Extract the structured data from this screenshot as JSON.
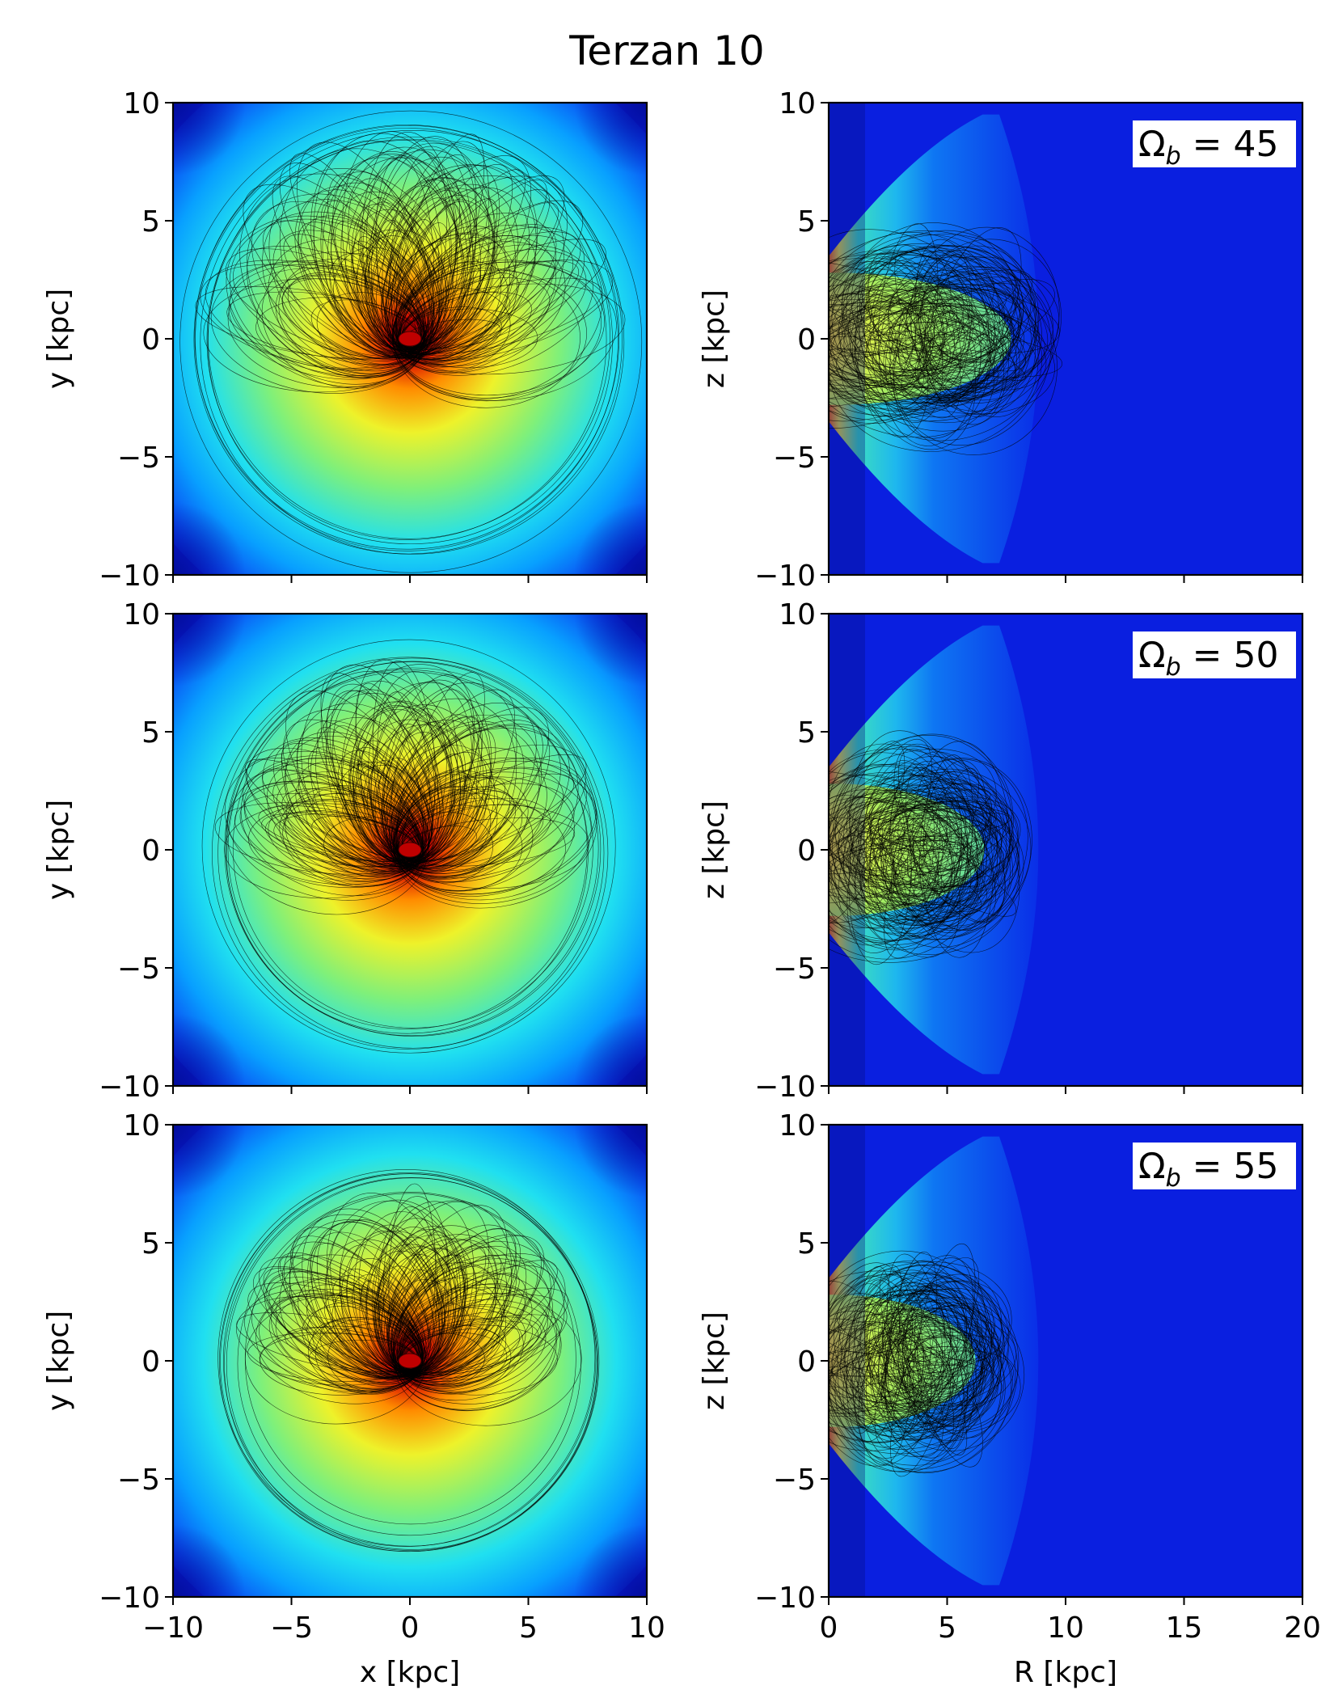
{
  "figure": {
    "title": "Terzan 10"
  },
  "chart_data": [
    {
      "type": "heatmap",
      "panel": "row1-left",
      "xlabel": "",
      "ylabel": "y [kpc]",
      "xlim": [
        -10,
        10
      ],
      "ylim": [
        -10,
        10
      ],
      "xticks": [
        -10,
        -5,
        0,
        5,
        10
      ],
      "yticks": [
        -10,
        -5,
        0,
        5,
        10
      ],
      "xticklabels_shown": false,
      "annotation": "",
      "density_peak": [
        0,
        0
      ],
      "orbit_extent_kpc": 9.8,
      "colormap": "jet"
    },
    {
      "type": "heatmap",
      "panel": "row1-right",
      "xlabel": "",
      "ylabel": "z [kpc]",
      "xlim": [
        0,
        20
      ],
      "ylim": [
        -10,
        10
      ],
      "xticks": [
        0,
        5,
        10,
        15,
        20
      ],
      "yticks": [
        -10,
        -5,
        0,
        5,
        10
      ],
      "xticklabels_shown": false,
      "annotation": "Ω_b = 45",
      "annotation_parts": [
        "Ω",
        "b",
        " = 45"
      ],
      "orbit_R_max_kpc": 10,
      "orbit_z_max_kpc": 5.5,
      "colormap": "jet"
    },
    {
      "type": "heatmap",
      "panel": "row2-left",
      "xlabel": "",
      "ylabel": "y [kpc]",
      "xlim": [
        -10,
        10
      ],
      "ylim": [
        -10,
        10
      ],
      "xticks": [
        -10,
        -5,
        0,
        5,
        10
      ],
      "yticks": [
        -10,
        -5,
        0,
        5,
        10
      ],
      "xticklabels_shown": false,
      "annotation": "",
      "density_peak": [
        0,
        0
      ],
      "orbit_extent_kpc": 8.8,
      "colormap": "jet"
    },
    {
      "type": "heatmap",
      "panel": "row2-right",
      "xlabel": "",
      "ylabel": "z [kpc]",
      "xlim": [
        0,
        20
      ],
      "ylim": [
        -10,
        10
      ],
      "xticks": [
        0,
        5,
        10,
        15,
        20
      ],
      "yticks": [
        -10,
        -5,
        0,
        5,
        10
      ],
      "xticklabels_shown": false,
      "annotation": "Ω_b = 50",
      "annotation_parts": [
        "Ω",
        "b",
        " = 50"
      ],
      "orbit_R_max_kpc": 8.5,
      "orbit_z_max_kpc": 6,
      "colormap": "jet"
    },
    {
      "type": "heatmap",
      "panel": "row3-left",
      "xlabel": "x [kpc]",
      "ylabel": "y [kpc]",
      "xlim": [
        -10,
        10
      ],
      "ylim": [
        -10,
        10
      ],
      "xticks": [
        -10,
        -5,
        0,
        5,
        10
      ],
      "yticks": [
        -10,
        -5,
        0,
        5,
        10
      ],
      "xticklabels_shown": true,
      "annotation": "",
      "density_peak": [
        0,
        0
      ],
      "orbit_extent_kpc": 8,
      "colormap": "jet"
    },
    {
      "type": "heatmap",
      "panel": "row3-right",
      "xlabel": "R [kpc]",
      "ylabel": "z [kpc]",
      "xlim": [
        0,
        20
      ],
      "ylim": [
        -10,
        10
      ],
      "xticks": [
        0,
        5,
        10,
        15,
        20
      ],
      "yticks": [
        -10,
        -5,
        0,
        5,
        10
      ],
      "xticklabels_shown": true,
      "annotation": "Ω_b = 55",
      "annotation_parts": [
        "Ω",
        "b",
        " = 55"
      ],
      "orbit_R_max_kpc": 8,
      "orbit_z_max_kpc": 5.5,
      "colormap": "jet"
    }
  ]
}
